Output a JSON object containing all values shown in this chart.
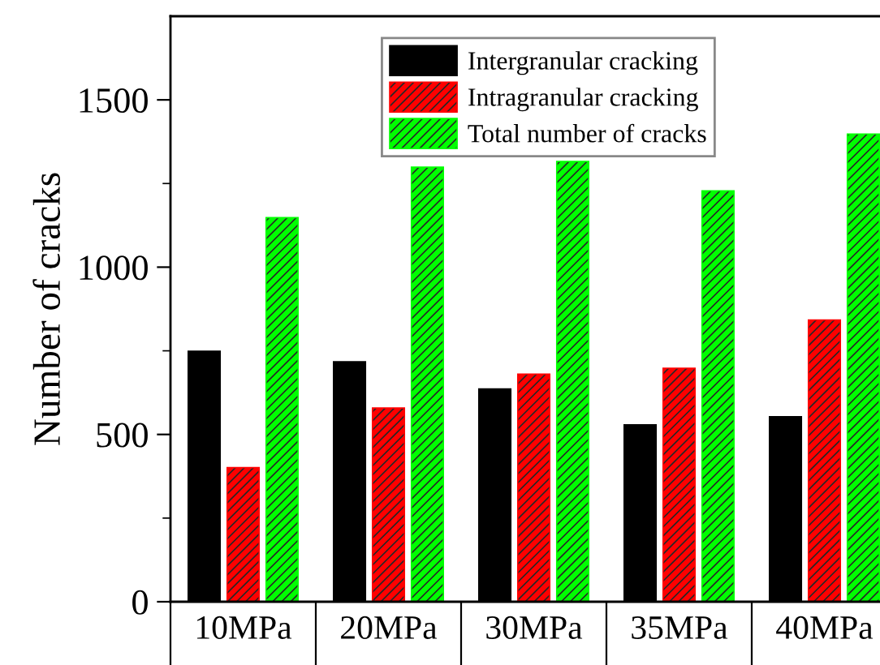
{
  "chart_data": {
    "type": "bar",
    "ylabel": "Number of cracks",
    "categories": [
      "10MPa",
      "20MPa",
      "30MPa",
      "35MPa",
      "40MPa"
    ],
    "series": [
      {
        "name": "Intergranular cracking",
        "color": "#000000",
        "values": [
          749,
          717,
          636,
          529,
          553
        ]
      },
      {
        "name": "Intragranular cracking",
        "color": "#ff0000",
        "values": [
          401,
          579,
          680,
          698,
          842
        ]
      },
      {
        "name": "Total number of cracks",
        "color": "#00ff00",
        "values": [
          1148,
          1299,
          1316,
          1228,
          1398
        ]
      }
    ],
    "ylim": [
      0,
      1750
    ],
    "yticks": [
      0,
      {
        "value": 250,
        "label": null
      },
      500,
      {
        "value": 750,
        "label": null
      },
      1000,
      {
        "value": 1250,
        "label": null
      },
      1500
    ],
    "grid": false,
    "legend": "top"
  }
}
